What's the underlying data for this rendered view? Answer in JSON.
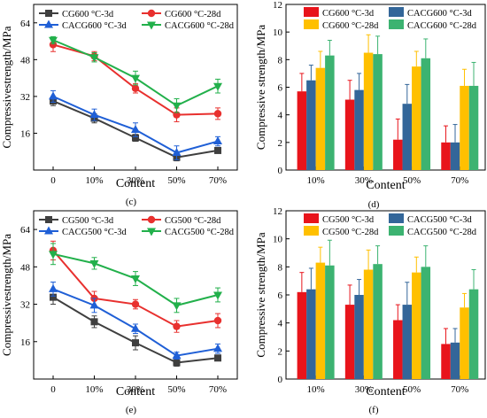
{
  "figure": {
    "panel_labels": [
      "(c)",
      "(d)",
      "(e)",
      "(f)"
    ]
  },
  "chart_data": [
    {
      "id": "c",
      "type": "line",
      "panel_label": "(c)",
      "xlabel": "Content",
      "ylabel": "Compressivestrength/MPa",
      "categories": [
        "0",
        "10%",
        "30%",
        "50%",
        "70%"
      ],
      "ylim": [
        0,
        72
      ],
      "yticks": [
        16,
        32,
        48,
        64
      ],
      "legend": "top",
      "series": [
        {
          "name": "CG600 °C-3d",
          "color": "#3f3f3f",
          "marker": "square",
          "values": [
            30,
            22.5,
            14,
            5.5,
            8.5
          ],
          "errors": [
            2,
            2,
            1.5,
            1.5,
            1
          ]
        },
        {
          "name": "CG600 °C-28d",
          "color": "#e8302e",
          "marker": "circle",
          "values": [
            54.5,
            49.5,
            35.5,
            24,
            24.5
          ],
          "errors": [
            3,
            2,
            2,
            3,
            2.5
          ]
        },
        {
          "name": "CACG600 °C-3d",
          "color": "#1f5fd6",
          "marker": "triangle-up",
          "values": [
            32,
            24,
            17.5,
            7.5,
            12.5
          ],
          "errors": [
            2.5,
            2.5,
            3,
            3,
            2
          ]
        },
        {
          "name": "CACG600 °C-28d",
          "color": "#22b04b",
          "marker": "triangle-down",
          "values": [
            56.5,
            49,
            40,
            28,
            36.5
          ],
          "errors": [
            1.5,
            2,
            3,
            3,
            3
          ]
        }
      ]
    },
    {
      "id": "d",
      "type": "bar",
      "panel_label": "(d)",
      "xlabel": "Content",
      "ylabel": "Compressive strength/MPa",
      "categories": [
        "10%",
        "30%",
        "50%",
        "70%"
      ],
      "ylim": [
        0,
        12
      ],
      "yticks": [
        0,
        2,
        4,
        6,
        8,
        10,
        12
      ],
      "legend": "top",
      "series": [
        {
          "name": "CG600 °C-3d",
          "color": "#e8141b",
          "values": [
            5.7,
            5.1,
            2.2,
            2.0
          ],
          "errors": [
            1.3,
            1.4,
            1.5,
            1.2
          ]
        },
        {
          "name": "CACG600 °C-3d",
          "color": "#336699",
          "values": [
            6.5,
            5.8,
            4.8,
            2.0
          ],
          "errors": [
            1.1,
            1.2,
            1.4,
            1.3
          ]
        },
        {
          "name": "CG600 °C-28d",
          "color": "#ffc000",
          "values": [
            7.4,
            8.5,
            7.5,
            6.1
          ],
          "errors": [
            1.2,
            1.3,
            1.1,
            1.2
          ]
        },
        {
          "name": "CACG600 °C-28d",
          "color": "#3cb371",
          "values": [
            8.3,
            8.4,
            8.1,
            6.1
          ],
          "errors": [
            1.1,
            1.3,
            1.4,
            1.7
          ]
        }
      ]
    },
    {
      "id": "e",
      "type": "line",
      "panel_label": "(e)",
      "xlabel": "Content",
      "ylabel": "Compressivestrength/MPa",
      "categories": [
        "0",
        "10%",
        "30%",
        "50%",
        "70%"
      ],
      "ylim": [
        0,
        72
      ],
      "yticks": [
        16,
        32,
        48,
        64
      ],
      "legend": "top",
      "series": [
        {
          "name": "CG500 °C-3d",
          "color": "#3f3f3f",
          "marker": "square",
          "values": [
            35,
            24.5,
            15.5,
            7,
            9
          ],
          "errors": [
            3,
            2.5,
            3,
            1.5,
            1
          ]
        },
        {
          "name": "CG500 °C-28d",
          "color": "#e8302e",
          "marker": "circle",
          "values": [
            55,
            34.5,
            32,
            22.5,
            25
          ],
          "errors": [
            4,
            3,
            2,
            2.5,
            3
          ]
        },
        {
          "name": "CACG500 °C-3d",
          "color": "#1f5fd6",
          "marker": "triangle-up",
          "values": [
            38.5,
            31.5,
            21.5,
            10,
            13
          ],
          "errors": [
            3,
            3,
            2,
            1.5,
            2
          ]
        },
        {
          "name": "CACG500 °C-28d",
          "color": "#22b04b",
          "marker": "triangle-down",
          "values": [
            53.5,
            49.5,
            43,
            31.5,
            36
          ],
          "errors": [
            4.5,
            2.5,
            3,
            3,
            3
          ]
        }
      ]
    },
    {
      "id": "f",
      "type": "bar",
      "panel_label": "(f)",
      "xlabel": "Content",
      "ylabel": "Compressive strength/MPa",
      "categories": [
        "10%",
        "30%",
        "50%",
        "70%"
      ],
      "ylim": [
        0,
        12
      ],
      "yticks": [
        0,
        2,
        4,
        6,
        8,
        10,
        12
      ],
      "legend": "top",
      "series": [
        {
          "name": "CG500 °C-3d",
          "color": "#e8141b",
          "values": [
            6.2,
            5.3,
            4.2,
            2.5
          ],
          "errors": [
            1.4,
            1.4,
            1.1,
            1.1
          ]
        },
        {
          "name": "CACG500 °C-3d",
          "color": "#336699",
          "values": [
            6.4,
            6.0,
            5.3,
            2.6
          ],
          "errors": [
            1.5,
            1.1,
            1.6,
            1.0
          ]
        },
        {
          "name": "CG500 °C-28d",
          "color": "#ffc000",
          "values": [
            8.3,
            7.8,
            7.6,
            5.1
          ],
          "errors": [
            1.1,
            1.4,
            1.1,
            1.0
          ]
        },
        {
          "name": "CACG500 °C-28d",
          "color": "#3cb371",
          "values": [
            8.1,
            8.2,
            8.0,
            6.4
          ],
          "errors": [
            1.8,
            1.3,
            1.5,
            1.4
          ]
        }
      ]
    }
  ]
}
